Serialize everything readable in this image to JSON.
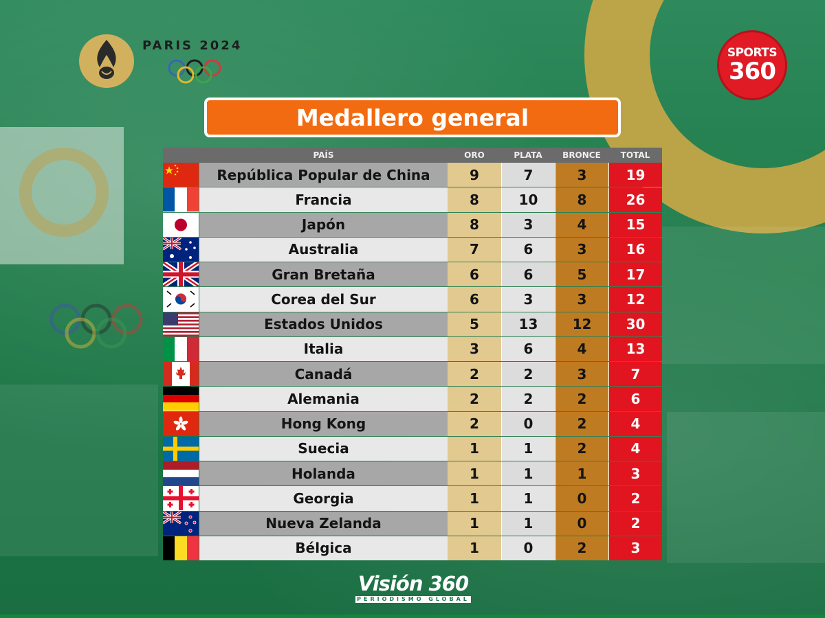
{
  "header": {
    "paris_text": "PARIS 2024",
    "sports_line1": "SPORTS",
    "sports_line2": "360",
    "title": "Medallero general"
  },
  "table": {
    "columns": [
      "PAÍS",
      "ORO",
      "PLATA",
      "BRONCE",
      "TOTAL"
    ],
    "rows": [
      {
        "flag": "china-flag",
        "country": "República Popular de China",
        "gold": "9",
        "silver": "7",
        "bronze": "3",
        "total": "19"
      },
      {
        "flag": "france-flag",
        "country": "Francia",
        "gold": "8",
        "silver": "10",
        "bronze": "8",
        "total": "26"
      },
      {
        "flag": "japan-flag",
        "country": "Japón",
        "gold": "8",
        "silver": "3",
        "bronze": "4",
        "total": "15"
      },
      {
        "flag": "australia-flag",
        "country": "Australia",
        "gold": "7",
        "silver": "6",
        "bronze": "3",
        "total": "16"
      },
      {
        "flag": "uk-flag",
        "country": "Gran Bretaña",
        "gold": "6",
        "silver": "6",
        "bronze": "5",
        "total": "17"
      },
      {
        "flag": "south-korea-flag",
        "country": "Corea del Sur",
        "gold": "6",
        "silver": "3",
        "bronze": "3",
        "total": "12"
      },
      {
        "flag": "usa-flag",
        "country": "Estados Unidos",
        "gold": "5",
        "silver": "13",
        "bronze": "12",
        "total": "30"
      },
      {
        "flag": "italy-flag",
        "country": "Italia",
        "gold": "3",
        "silver": "6",
        "bronze": "4",
        "total": "13"
      },
      {
        "flag": "canada-flag",
        "country": "Canadá",
        "gold": "2",
        "silver": "2",
        "bronze": "3",
        "total": "7"
      },
      {
        "flag": "germany-flag",
        "country": "Alemania",
        "gold": "2",
        "silver": "2",
        "bronze": "2",
        "total": "6"
      },
      {
        "flag": "hong-kong-flag",
        "country": "Hong Kong",
        "gold": "2",
        "silver": "0",
        "bronze": "2",
        "total": "4"
      },
      {
        "flag": "sweden-flag",
        "country": "Suecia",
        "gold": "1",
        "silver": "1",
        "bronze": "2",
        "total": "4"
      },
      {
        "flag": "netherlands-flag",
        "country": "Holanda",
        "gold": "1",
        "silver": "1",
        "bronze": "1",
        "total": "3"
      },
      {
        "flag": "georgia-flag",
        "country": "Georgia",
        "gold": "1",
        "silver": "1",
        "bronze": "0",
        "total": "2"
      },
      {
        "flag": "new-zealand-flag",
        "country": "Nueva Zelanda",
        "gold": "1",
        "silver": "1",
        "bronze": "0",
        "total": "2"
      },
      {
        "flag": "belgium-flag",
        "country": "Bélgica",
        "gold": "1",
        "silver": "0",
        "bronze": "2",
        "total": "3"
      }
    ]
  },
  "footer": {
    "brand": "Visión 360",
    "tagline": "PERIODISMO GLOBAL"
  },
  "colors": {
    "title_bg": "#f36b10",
    "gold_col": "#e1c98f",
    "bronze_col": "#bf7b21",
    "total_col": "#e0151f",
    "sports_red": "#e01b25",
    "background_green": "#1f7a4a"
  }
}
